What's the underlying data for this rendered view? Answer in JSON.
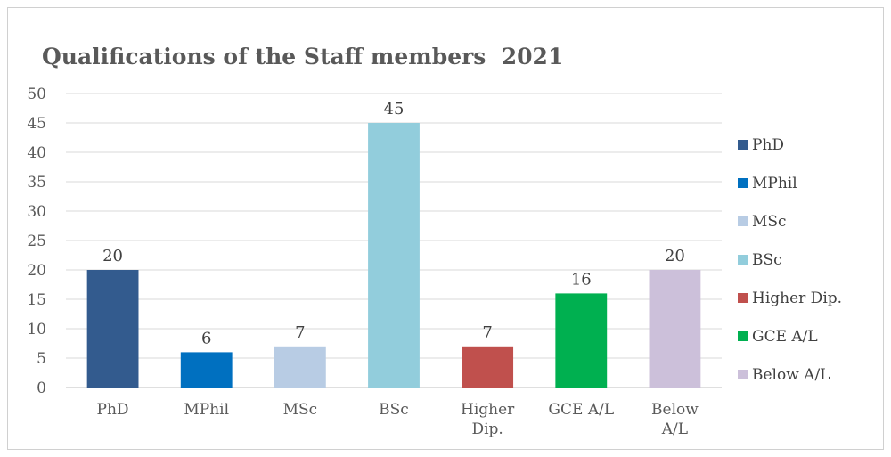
{
  "chart_data": {
    "type": "bar",
    "title": "Qualifications of the Staff members  2021",
    "categories": [
      [
        "PhD"
      ],
      [
        "MPhil"
      ],
      [
        "MSc"
      ],
      [
        "BSc"
      ],
      [
        "Higher",
        "Dip."
      ],
      [
        "GCE A/L"
      ],
      [
        "Below",
        "A/L"
      ]
    ],
    "values": [
      20,
      6,
      7,
      45,
      7,
      16,
      20
    ],
    "colors": [
      "#335b8e",
      "#0070c0",
      "#b8cce4",
      "#92cddc",
      "#c0504d",
      "#00b050",
      "#ccc0da"
    ],
    "ylim": [
      0,
      50
    ],
    "yticks": [
      0,
      5,
      10,
      15,
      20,
      25,
      30,
      35,
      40,
      45,
      50
    ],
    "grid": true,
    "legend": {
      "position": "right",
      "entries": [
        "PhD",
        "MPhil",
        "MSc",
        "BSc",
        "Higher Dip.",
        "GCE A/L",
        "Below A/L"
      ]
    }
  }
}
